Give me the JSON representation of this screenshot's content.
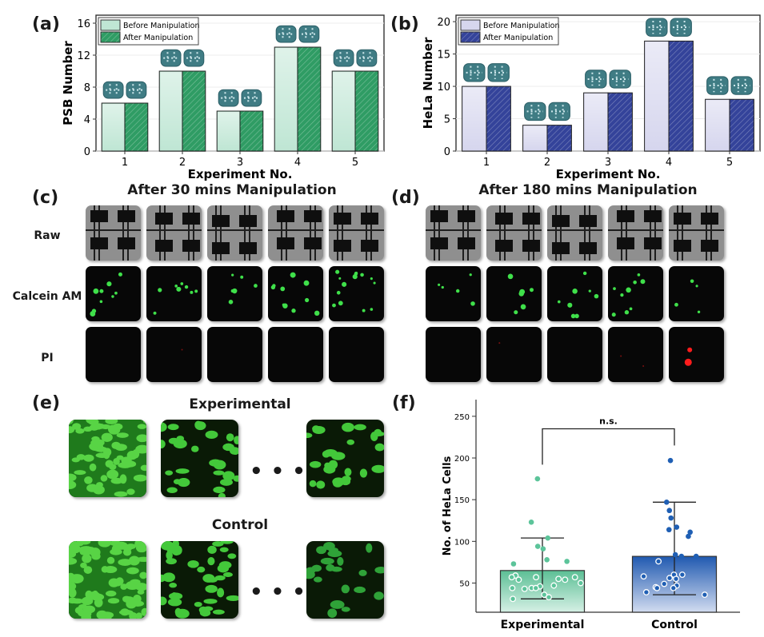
{
  "panels": {
    "a": "(a)",
    "b": "(b)",
    "c": "(c)",
    "d": "(d)",
    "e": "(e)",
    "f": "(f)"
  },
  "panel_c": {
    "title": "After 30 mins Manipulation",
    "row_labels": [
      "Raw",
      "Calcein AM",
      "PI"
    ],
    "calcein_counts": [
      9,
      8,
      6,
      10,
      14
    ],
    "pi_counts": [
      0,
      1,
      0,
      0,
      0
    ]
  },
  "panel_d": {
    "title": "After 180 mins Manipulation",
    "calcein_counts": [
      5,
      6,
      8,
      9,
      4
    ],
    "pi_counts": [
      0,
      1,
      0,
      2,
      2
    ]
  },
  "panel_e": {
    "experimental_title": "Experimental",
    "control_title": "Control",
    "ellipsis": "•••"
  },
  "colors": {
    "green_before": "#bfe6d4",
    "green_after": "#2f9c64",
    "blue_before": "#d6d6ee",
    "blue_after": "#34439a",
    "exp_point": "#5cc49a",
    "ctrl_point": "#1f5fb4",
    "calcein": "#3fe04a",
    "pi": "#ff1c1c"
  },
  "chart_data": [
    {
      "type": "bar",
      "id": "a",
      "title": "",
      "xlabel": "Experiment No.",
      "ylabel": "PSB Number",
      "categories": [
        "1",
        "2",
        "3",
        "4",
        "5"
      ],
      "ylim": [
        0,
        17
      ],
      "yticks": [
        0,
        4,
        8,
        12,
        16
      ],
      "legend": "top-left",
      "series": [
        {
          "name": "Before Manipulation",
          "values": [
            6,
            10,
            5,
            13,
            10
          ]
        },
        {
          "name": "After Manipulation",
          "values": [
            6,
            10,
            5,
            13,
            10
          ]
        }
      ]
    },
    {
      "type": "bar",
      "id": "b",
      "title": "",
      "xlabel": "Experiment No.",
      "ylabel": "HeLa Number",
      "categories": [
        "1",
        "2",
        "3",
        "4",
        "5"
      ],
      "ylim": [
        0,
        21
      ],
      "yticks": [
        0,
        5,
        10,
        15,
        20
      ],
      "legend": "top-left",
      "series": [
        {
          "name": "Before Manipulation",
          "values": [
            10,
            4,
            9,
            17,
            8
          ]
        },
        {
          "name": "After Manipulation",
          "values": [
            10,
            4,
            9,
            17,
            8
          ]
        }
      ]
    },
    {
      "type": "bar",
      "id": "f",
      "title": "",
      "xlabel": "",
      "ylabel": "No. of HeLa Cells",
      "categories": [
        "Experimental",
        "Control"
      ],
      "ylim": [
        15,
        270
      ],
      "yticks": [
        50,
        100,
        150,
        200,
        250
      ],
      "annotation": "n.s.",
      "series": [
        {
          "name": "mean",
          "values": [
            65,
            82
          ]
        }
      ],
      "error_bars": [
        {
          "low": 31,
          "high": 104
        },
        {
          "low": 36,
          "high": 147
        }
      ],
      "points": [
        [
          175,
          123,
          104,
          94,
          91,
          78,
          76,
          73,
          59,
          57,
          57,
          57,
          55,
          54,
          54,
          50,
          47,
          46,
          44,
          44,
          44,
          43,
          36,
          33,
          31
        ],
        [
          197,
          147,
          137,
          128,
          117,
          114,
          111,
          106,
          84,
          82,
          82,
          76,
          60,
          60,
          58,
          56,
          55,
          49,
          47,
          45,
          44,
          44,
          39,
          36
        ]
      ]
    }
  ]
}
